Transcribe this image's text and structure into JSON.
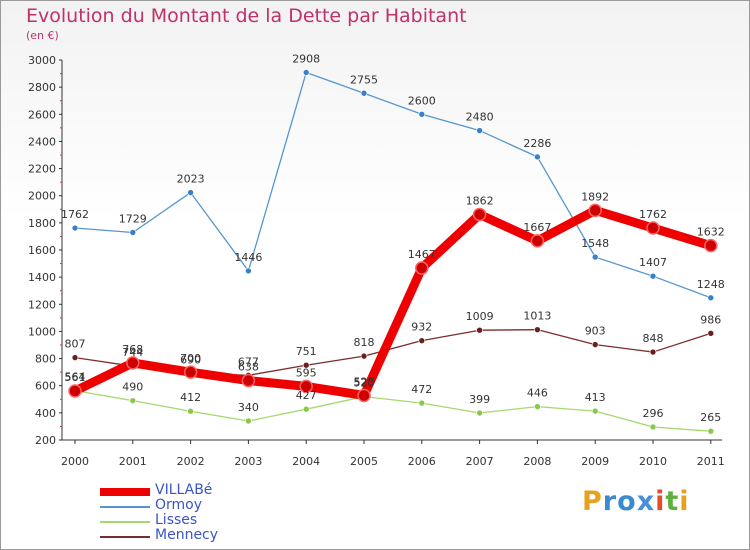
{
  "title": "Evolution du Montant de la Dette par Habitant",
  "subtitle": "(en €)",
  "brand": {
    "letters": [
      {
        "char": "P",
        "color": "#e8a020"
      },
      {
        "char": "r",
        "color": "#3a8ad0"
      },
      {
        "char": "o",
        "color": "#3a8ad0"
      },
      {
        "char": "x",
        "color": "#4a90d8"
      },
      {
        "char": "i",
        "color": "#e84a2a"
      },
      {
        "char": "t",
        "color": "#60b040"
      },
      {
        "char": "i",
        "color": "#e8a020"
      }
    ]
  },
  "chart_data": {
    "type": "line",
    "title": "Evolution du Montant de la Dette par Habitant",
    "subtitle": "(en €)",
    "x": [
      "2000",
      "2001",
      "2002",
      "2003",
      "2004",
      "2005",
      "2006",
      "2007",
      "2008",
      "2009",
      "2010",
      "2011"
    ],
    "ylim": [
      200,
      3000
    ],
    "yticks": [
      200,
      400,
      600,
      800,
      1000,
      1200,
      1400,
      1600,
      1800,
      2000,
      2200,
      2400,
      2600,
      2800,
      3000
    ],
    "grid": false,
    "legend_position": "bottom-left",
    "series": [
      {
        "name": "VILLABé",
        "color": "#ee0000",
        "marker_color": "#cc0000",
        "emphasis": true,
        "values": [
          561,
          768,
          700,
          638,
          595,
          528,
          1467,
          1862,
          1667,
          1892,
          1762,
          1632
        ]
      },
      {
        "name": "Ormoy",
        "color": "#5596d0",
        "marker_color": "#3a7fc8",
        "values": [
          1762,
          1729,
          2023,
          1446,
          2908,
          2755,
          2600,
          2480,
          2286,
          1548,
          1407,
          1248
        ]
      },
      {
        "name": "Lisses",
        "color": "#a6d86e",
        "marker_color": "#88c84a",
        "values": [
          564,
          490,
          412,
          340,
          427,
          520,
          472,
          399,
          446,
          413,
          296,
          265
        ]
      },
      {
        "name": "Mennecy",
        "color": "#7a2d2d",
        "marker_color": "#6a1f1f",
        "values": [
          807,
          744,
          690,
          677,
          751,
          818,
          932,
          1009,
          1013,
          903,
          848,
          986
        ]
      }
    ]
  }
}
